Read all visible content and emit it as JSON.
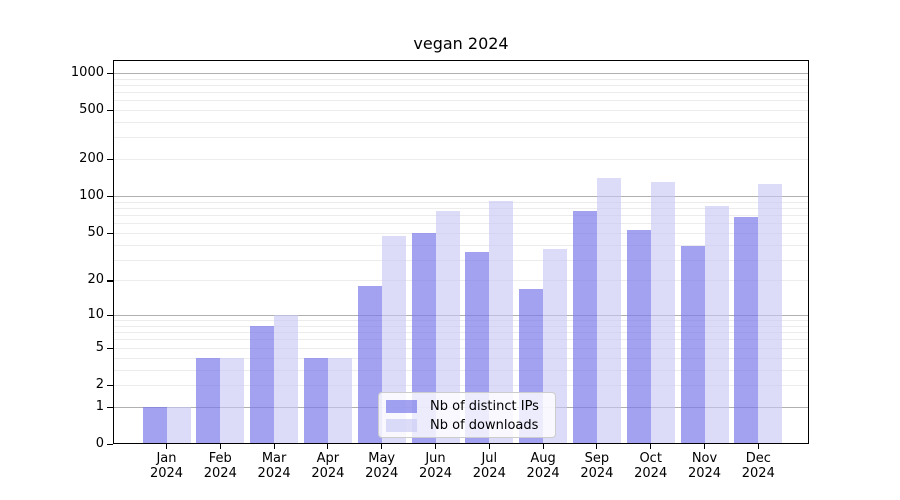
{
  "chart_data": {
    "type": "bar",
    "title": "vegan 2024",
    "categories": [
      {
        "month": "Jan",
        "year": "2024"
      },
      {
        "month": "Feb",
        "year": "2024"
      },
      {
        "month": "Mar",
        "year": "2024"
      },
      {
        "month": "Apr",
        "year": "2024"
      },
      {
        "month": "May",
        "year": "2024"
      },
      {
        "month": "Jun",
        "year": "2024"
      },
      {
        "month": "Jul",
        "year": "2024"
      },
      {
        "month": "Aug",
        "year": "2024"
      },
      {
        "month": "Sep",
        "year": "2024"
      },
      {
        "month": "Oct",
        "year": "2024"
      },
      {
        "month": "Nov",
        "year": "2024"
      },
      {
        "month": "Dec",
        "year": "2024"
      }
    ],
    "series": [
      {
        "name": "Nb of distinct IPs",
        "color": "rgba(123,123,233,0.70)",
        "values": [
          1,
          4,
          8,
          4,
          18,
          50,
          35,
          17,
          76,
          53,
          39,
          68
        ]
      },
      {
        "name": "Nb of downloads",
        "color": "rgba(198,198,244,0.62)",
        "values": [
          1,
          4,
          10,
          4,
          47,
          75,
          91,
          37,
          140,
          130,
          83,
          126
        ]
      }
    ],
    "y_axis": {
      "scale": "log1p",
      "ticks": [
        1000,
        500,
        200,
        100,
        50,
        20,
        10,
        5,
        2,
        1,
        0
      ],
      "max_value": 1272
    },
    "x_axis": {
      "tick_count": 12
    },
    "grid": {
      "major": [
        1,
        10,
        100,
        1000
      ],
      "minor": [
        2,
        3,
        4,
        5,
        6,
        7,
        8,
        9,
        20,
        30,
        40,
        50,
        60,
        70,
        80,
        90,
        200,
        300,
        400,
        500,
        600,
        700,
        800,
        900
      ],
      "major_color": "#b0b0b0",
      "minor_color": "#ececec"
    },
    "legend": {
      "position": "lower-center"
    },
    "colors": {
      "spine": "#000000",
      "text": "#000000",
      "background": "#ffffff"
    }
  }
}
